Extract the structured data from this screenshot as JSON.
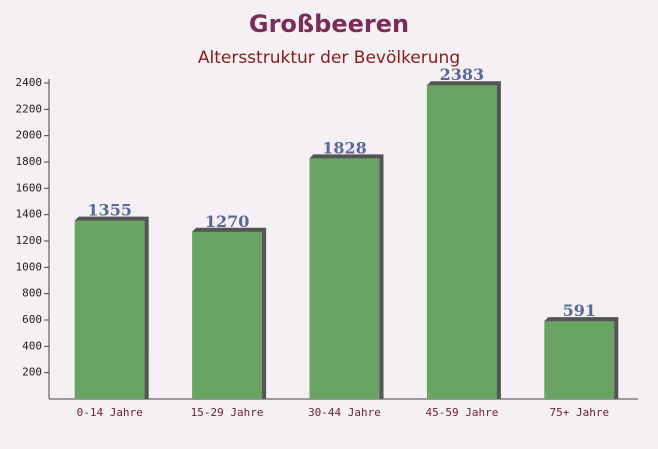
{
  "chart_data": {
    "type": "bar",
    "title": "Großbeeren",
    "subtitle": "Altersstruktur der Bevölkerung",
    "categories": [
      "0-14 Jahre",
      "15-29 Jahre",
      "30-44 Jahre",
      "45-59 Jahre",
      "75+ Jahre"
    ],
    "values": [
      1355,
      1270,
      1828,
      2383,
      591
    ],
    "color": "#6aa465",
    "ylim": [
      0,
      2400
    ],
    "yticks": [
      200,
      400,
      600,
      800,
      1000,
      1200,
      1400,
      1600,
      1800,
      2000,
      2200,
      2400
    ],
    "grid": false
  }
}
